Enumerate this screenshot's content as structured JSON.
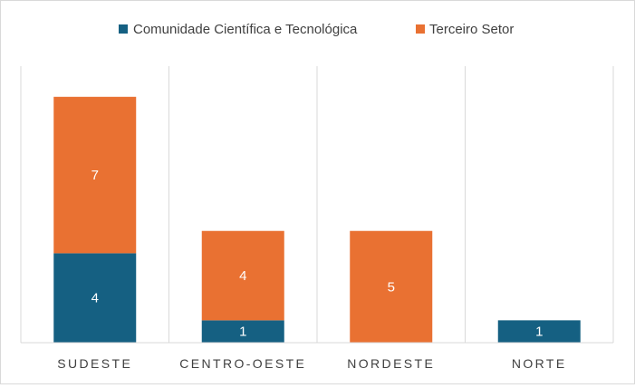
{
  "chart_data": {
    "type": "bar",
    "stacked": true,
    "categories": [
      "SUDESTE",
      "CENTRO-OESTE",
      "NORDESTE",
      "NORTE"
    ],
    "series": [
      {
        "name": "Comunidade Científica e Tecnológica",
        "color": "#156082",
        "values": [
          4,
          1,
          0,
          1
        ]
      },
      {
        "name": "Terceiro Setor",
        "color": "#E97132",
        "values": [
          7,
          4,
          5,
          0
        ]
      }
    ],
    "data_labels": [
      [
        "4",
        "1",
        "",
        "1"
      ],
      [
        "7",
        "4",
        "5",
        ""
      ]
    ],
    "ylim": [
      0,
      12
    ],
    "grid": "vertical-category-separators",
    "legend_position": "top"
  }
}
